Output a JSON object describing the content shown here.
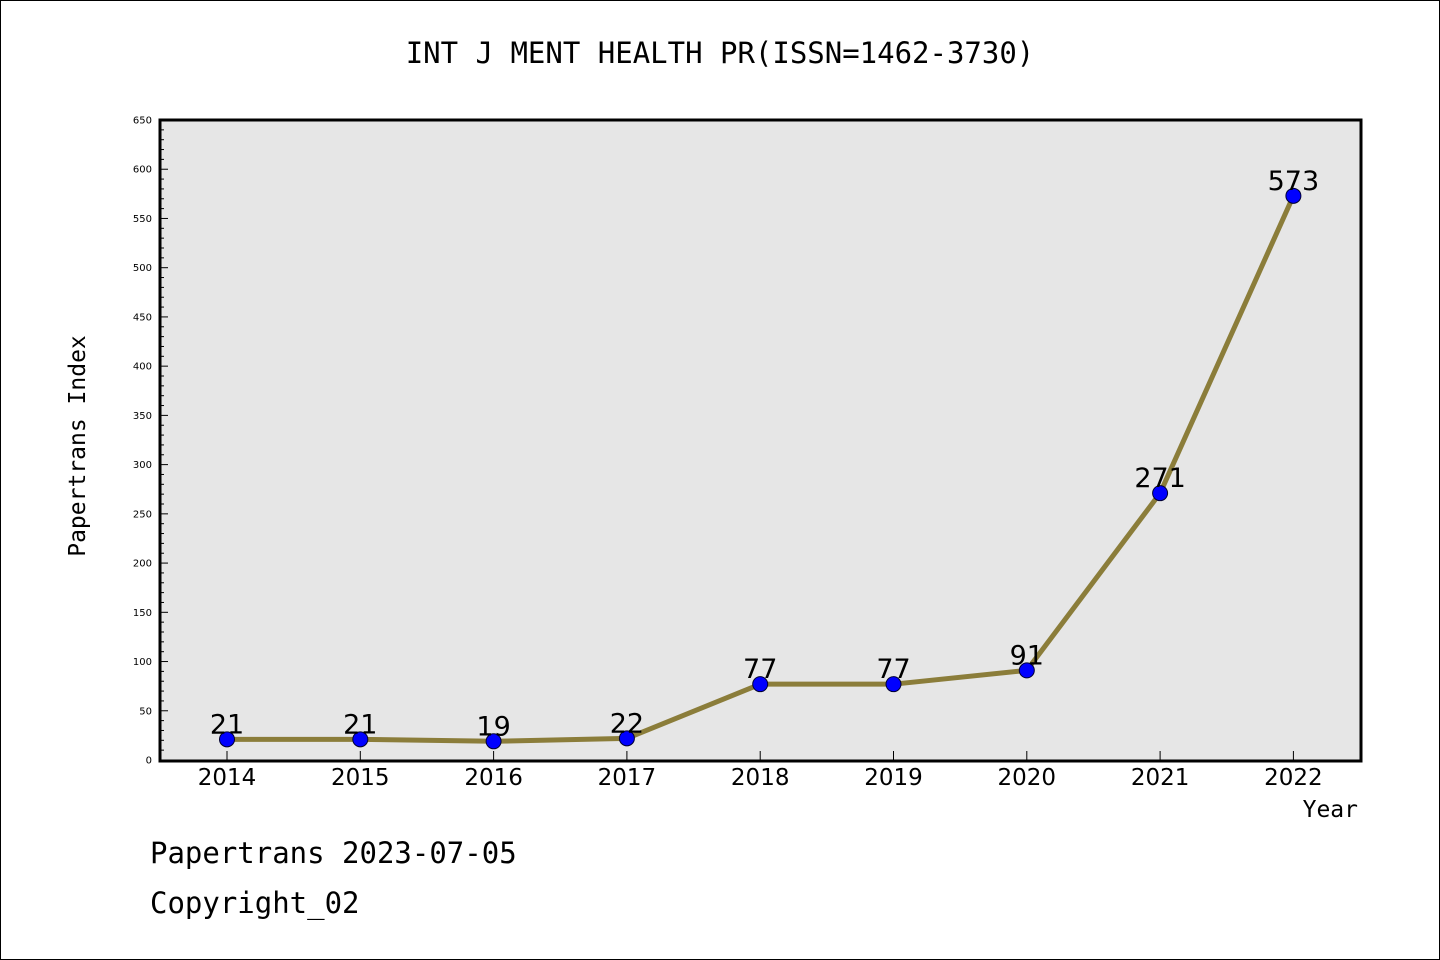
{
  "chart_data": {
    "type": "line",
    "title": "INT J MENT HEALTH PR(ISSN=1462-3730)",
    "xlabel": "Year",
    "ylabel": "Papertrans Index",
    "categories": [
      "2014",
      "2015",
      "2016",
      "2017",
      "2018",
      "2019",
      "2020",
      "2021",
      "2022"
    ],
    "values": [
      21,
      21,
      19,
      22,
      77,
      77,
      91,
      271,
      573
    ],
    "ylim": [
      0,
      650
    ],
    "yticks": [
      0,
      50,
      100,
      150,
      200,
      250,
      300,
      350,
      400,
      450,
      500,
      550,
      600,
      650
    ],
    "grid": false,
    "colors": {
      "line": "#8B7D3A",
      "marker": "#0000FF",
      "plot_background": "#E6E6E6"
    }
  },
  "footer": {
    "line1": "Papertrans 2023-07-05",
    "line2": "Copyright_02"
  }
}
